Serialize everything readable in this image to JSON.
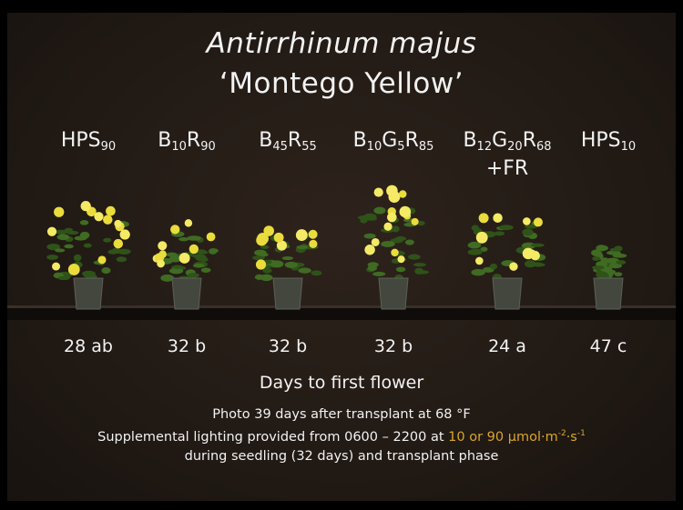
{
  "title": [
    "Antirrhinum majus",
    "‘Montego Yellow’"
  ],
  "treatments": [
    {
      "label": [
        {
          "text": "HPS"
        },
        {
          "sub": "90"
        }
      ]
    },
    {
      "label": [
        {
          "text": "B"
        },
        {
          "sub": "10"
        },
        {
          "text": "R"
        },
        {
          "sub": "90"
        }
      ]
    },
    {
      "label": [
        {
          "text": "B"
        },
        {
          "sub": "45"
        },
        {
          "text": "R"
        },
        {
          "sub": "55"
        }
      ]
    },
    {
      "label": [
        {
          "text": "B"
        },
        {
          "sub": "10"
        },
        {
          "text": "G"
        },
        {
          "sub": "5"
        },
        {
          "text": "R"
        },
        {
          "sub": "85"
        }
      ]
    },
    {
      "label": [
        {
          "text": "B"
        },
        {
          "sub": "12"
        },
        {
          "text": "G"
        },
        {
          "sub": "20"
        },
        {
          "text": "R"
        },
        {
          "sub": "68"
        }
      ],
      "line2": "+FR"
    },
    {
      "label": [
        {
          "text": "HPS"
        },
        {
          "sub": "10"
        }
      ]
    }
  ],
  "results": [
    "28 ab",
    "32 b",
    "32 b",
    "32 b",
    "24 a",
    "47 c"
  ],
  "caption": "Days to first flower",
  "notes": [
    [
      {
        "text": "Photo 39 days after transplant at 68 °F"
      }
    ],
    [
      {
        "text": "Supplemental lighting provided from 0600 – 2200 at "
      },
      {
        "hl": "10 or 90 µmol·m"
      },
      {
        "sup": "-2"
      },
      {
        "hl": "·s"
      },
      {
        "sup": "-1"
      }
    ],
    [
      {
        "text": "during seedling (32 days) and transplant phase"
      }
    ]
  ]
}
